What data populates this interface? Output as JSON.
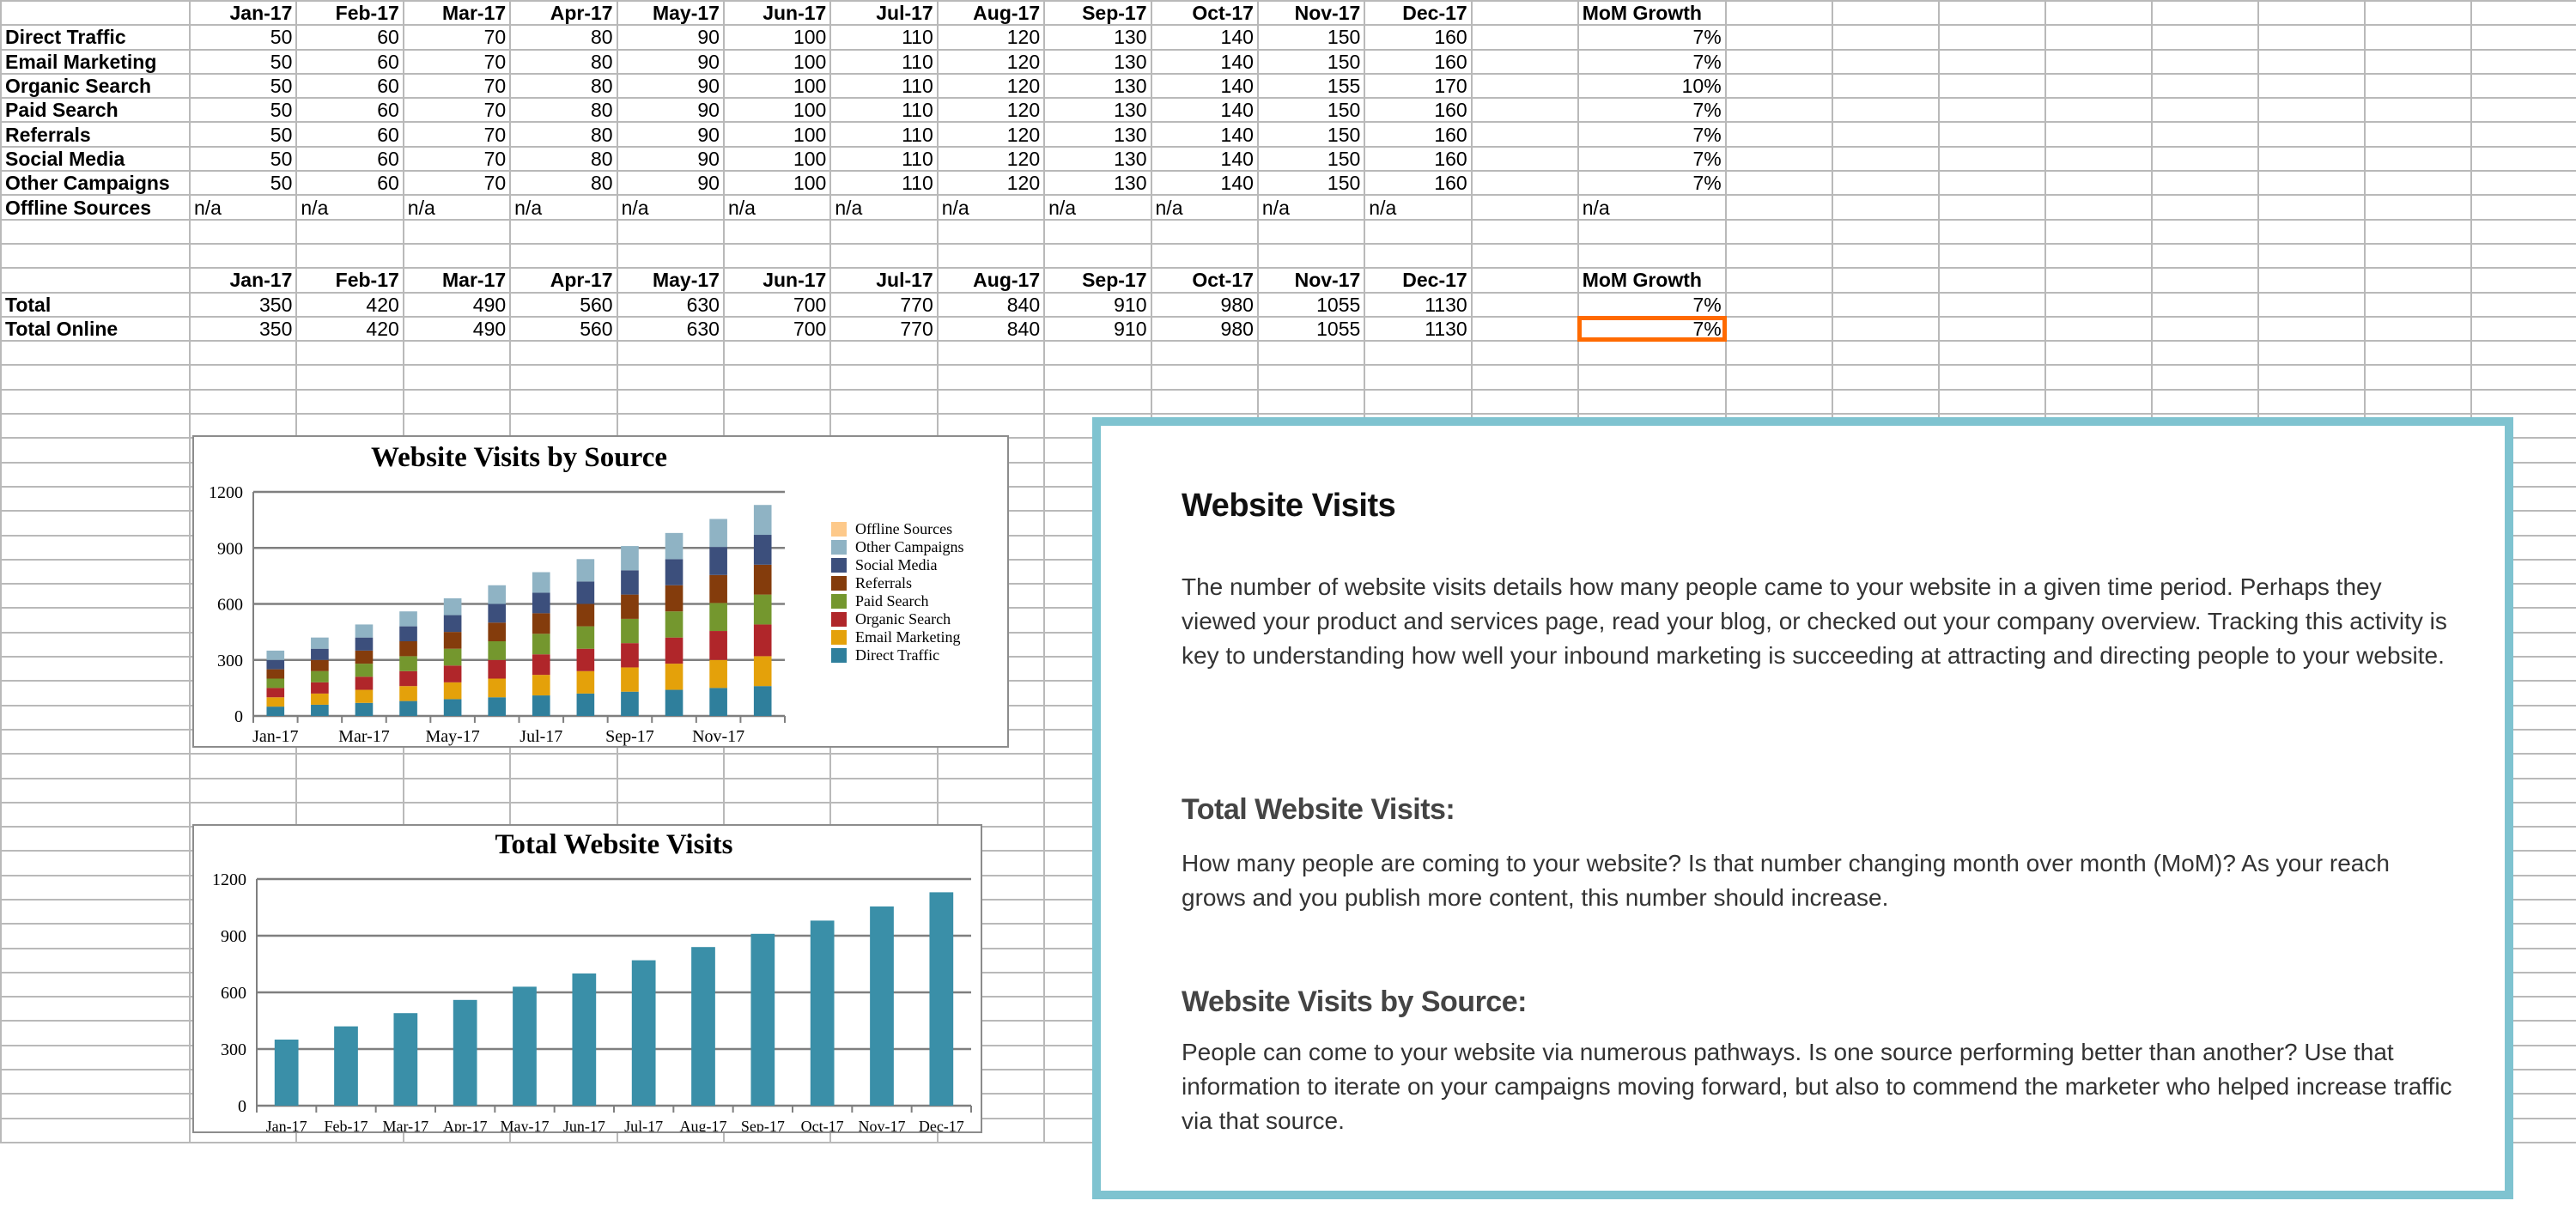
{
  "sheet": {
    "months": [
      "Jan-17",
      "Feb-17",
      "Mar-17",
      "Apr-17",
      "May-17",
      "Jun-17",
      "Jul-17",
      "Aug-17",
      "Sep-17",
      "Oct-17",
      "Nov-17",
      "Dec-17"
    ],
    "growth_header": "MoM Growth",
    "source_rows": [
      {
        "label": "Direct Traffic",
        "values": [
          "50",
          "60",
          "70",
          "80",
          "90",
          "100",
          "110",
          "120",
          "130",
          "140",
          "150",
          "160"
        ],
        "growth": "7%"
      },
      {
        "label": "Email Marketing",
        "values": [
          "50",
          "60",
          "70",
          "80",
          "90",
          "100",
          "110",
          "120",
          "130",
          "140",
          "150",
          "160"
        ],
        "growth": "7%"
      },
      {
        "label": "Organic Search",
        "values": [
          "50",
          "60",
          "70",
          "80",
          "90",
          "100",
          "110",
          "120",
          "130",
          "140",
          "155",
          "170"
        ],
        "growth": "10%"
      },
      {
        "label": "Paid Search",
        "values": [
          "50",
          "60",
          "70",
          "80",
          "90",
          "100",
          "110",
          "120",
          "130",
          "140",
          "150",
          "160"
        ],
        "growth": "7%"
      },
      {
        "label": "Referrals",
        "values": [
          "50",
          "60",
          "70",
          "80",
          "90",
          "100",
          "110",
          "120",
          "130",
          "140",
          "150",
          "160"
        ],
        "growth": "7%"
      },
      {
        "label": "Social Media",
        "values": [
          "50",
          "60",
          "70",
          "80",
          "90",
          "100",
          "110",
          "120",
          "130",
          "140",
          "150",
          "160"
        ],
        "growth": "7%"
      },
      {
        "label": "Other Campaigns",
        "values": [
          "50",
          "60",
          "70",
          "80",
          "90",
          "100",
          "110",
          "120",
          "130",
          "140",
          "150",
          "160"
        ],
        "growth": "7%"
      },
      {
        "label": "Offline Sources",
        "values": [
          "n/a",
          "n/a",
          "n/a",
          "n/a",
          "n/a",
          "n/a",
          "n/a",
          "n/a",
          "n/a",
          "n/a",
          "n/a",
          "n/a"
        ],
        "growth": "n/a"
      }
    ],
    "total_rows": [
      {
        "label": "Total",
        "values": [
          "350",
          "420",
          "490",
          "560",
          "630",
          "700",
          "770",
          "840",
          "910",
          "980",
          "1055",
          "1130"
        ],
        "growth": "7%"
      },
      {
        "label": "Total Online",
        "values": [
          "350",
          "420",
          "490",
          "560",
          "630",
          "700",
          "770",
          "840",
          "910",
          "980",
          "1055",
          "1130"
        ],
        "growth": "7%",
        "selected": true
      }
    ],
    "selection_color": "#ff6a00"
  },
  "chart_data": [
    {
      "type": "bar",
      "stacked": true,
      "title": "Website Visits by Source",
      "categories": [
        "Jan-17",
        "Feb-17",
        "Mar-17",
        "Apr-17",
        "May-17",
        "Jun-17",
        "Jul-17",
        "Aug-17",
        "Sep-17",
        "Oct-17",
        "Nov-17",
        "Dec-17"
      ],
      "tick_labels": [
        "Jan-17",
        "Mar-17",
        "May-17",
        "Jul-17",
        "Sep-17",
        "Nov-17"
      ],
      "yticks": [
        "0",
        "300",
        "600",
        "900",
        "1200"
      ],
      "ylim": [
        0,
        1200
      ],
      "grid": true,
      "legend": "right",
      "series": [
        {
          "name": "Direct Traffic",
          "color": "#2f7f9c",
          "values": [
            50,
            60,
            70,
            80,
            90,
            100,
            110,
            120,
            130,
            140,
            150,
            160
          ]
        },
        {
          "name": "Email Marketing",
          "color": "#e4a10a",
          "values": [
            50,
            60,
            70,
            80,
            90,
            100,
            110,
            120,
            130,
            140,
            150,
            160
          ]
        },
        {
          "name": "Organic Search",
          "color": "#b0262a",
          "values": [
            50,
            60,
            70,
            80,
            90,
            100,
            110,
            120,
            130,
            140,
            155,
            170
          ]
        },
        {
          "name": "Paid Search",
          "color": "#74972e",
          "values": [
            50,
            60,
            70,
            80,
            90,
            100,
            110,
            120,
            130,
            140,
            150,
            160
          ]
        },
        {
          "name": "Referrals",
          "color": "#843c0c",
          "values": [
            50,
            60,
            70,
            80,
            90,
            100,
            110,
            120,
            130,
            140,
            150,
            160
          ]
        },
        {
          "name": "Social Media",
          "color": "#3c4f7c",
          "values": [
            50,
            60,
            70,
            80,
            90,
            100,
            110,
            120,
            130,
            140,
            150,
            160
          ]
        },
        {
          "name": "Other Campaigns",
          "color": "#8fb3c4",
          "values": [
            50,
            60,
            70,
            80,
            90,
            100,
            110,
            120,
            130,
            140,
            150,
            160
          ]
        },
        {
          "name": "Offline Sources",
          "color": "#fdc98a",
          "values": [
            0,
            0,
            0,
            0,
            0,
            0,
            0,
            0,
            0,
            0,
            0,
            0
          ]
        }
      ]
    },
    {
      "type": "bar",
      "title": "Total Website Visits",
      "categories": [
        "Jan-17",
        "Feb-17",
        "Mar-17",
        "Apr-17",
        "May-17",
        "Jun-17",
        "Jul-17",
        "Aug-17",
        "Sep-17",
        "Oct-17",
        "Nov-17",
        "Dec-17"
      ],
      "tick_labels": [
        "Jan-17",
        "Feb-17",
        "Mar-17",
        "Apr-17",
        "May-17",
        "Jun-17",
        "Jul-17",
        "Aug-17",
        "Sep-17",
        "Oct-17",
        "Nov-17",
        "Dec-17"
      ],
      "yticks": [
        "0",
        "300",
        "600",
        "900",
        "1200"
      ],
      "ylim": [
        0,
        1200
      ],
      "grid": true,
      "color": "#3a8fa8",
      "values": [
        350,
        420,
        490,
        560,
        630,
        700,
        770,
        840,
        910,
        980,
        1055,
        1130
      ]
    }
  ],
  "panel": {
    "border_color": "#7fc3d0",
    "title": "Website Visits",
    "intro": "The number of website visits details how many people came to your website in a given time period. Perhaps they viewed your product and services page, read your blog, or checked out your company overview. Tracking this activity is key to understanding how well your inbound marketing is succeeding at attracting and directing people to your website.",
    "total_heading": "Total Website Visits:",
    "total_text": "How many people are coming to your website? Is that number changing month over month (MoM)? As your reach grows and you publish more content, this number should increase.",
    "source_heading": "Website Visits by Source:",
    "source_text": "People can come to your website via numerous pathways. Is one source performing better than another? Use that information to iterate on your campaigns moving forward, but also to commend the marketer who helped increase traffic via that source."
  }
}
